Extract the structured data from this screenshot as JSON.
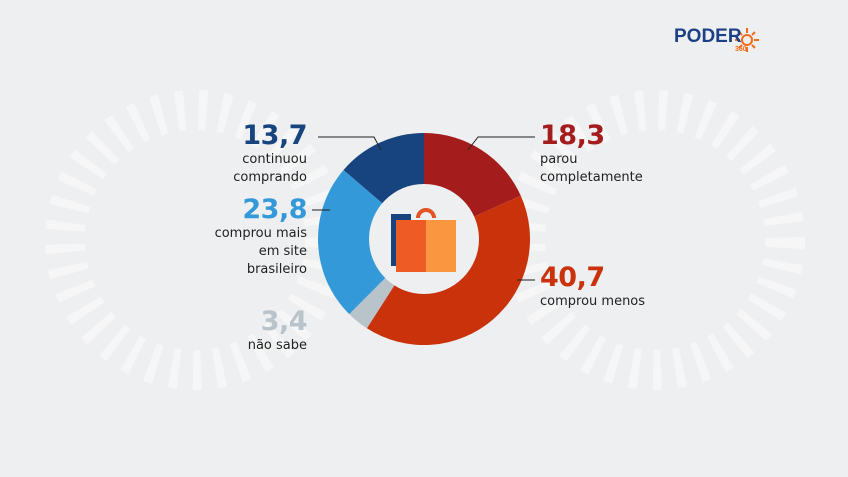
{
  "brand": {
    "name": "PODER",
    "sub": "360"
  },
  "chart_data": {
    "type": "donut",
    "categories": [
      "parou\ncompletamente",
      "comprou menos",
      "não sabe",
      "comprou mais\nem site\nbrasileiro",
      "continuou\ncomprando"
    ],
    "values": [
      18.3,
      40.7,
      3.4,
      23.8,
      13.7
    ],
    "value_labels": [
      "18,3",
      "40,7",
      "3,4",
      "23,8",
      "13,7"
    ],
    "colors": [
      "#a51c1c",
      "#c9320b",
      "#b9c3ca",
      "#3399d8",
      "#17447f"
    ]
  }
}
